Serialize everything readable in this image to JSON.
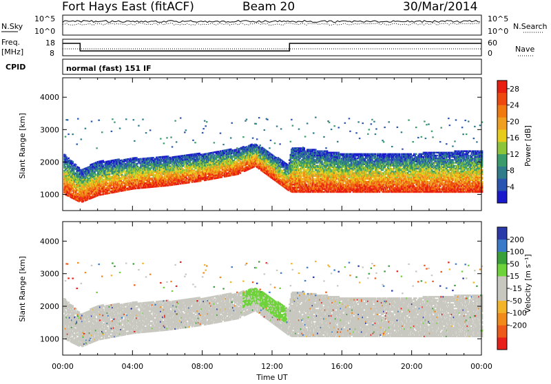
{
  "header": {
    "title": "Fort Hays East (fitACF)",
    "beam": "Beam 20",
    "date": "30/Mar/2014"
  },
  "top_panels": {
    "nsky_label": "N.Sky",
    "noise_ticks_left": [
      "10^5",
      "10^0"
    ],
    "noise_ticks_right": [
      "10^5",
      "10^0"
    ],
    "nsearch_label": "N.Search",
    "freq_label": "Freq.",
    "freq_unit": "[MHz]",
    "freq_ticks": [
      "18",
      "8"
    ],
    "nave_ticks": [
      "60",
      "0"
    ],
    "nave_label": "Nave",
    "cpid_label": "CPID",
    "cpid_text": "normal (fast) 151 IF"
  },
  "colors": {
    "power_scale": [
      "#1a1acc",
      "#2a55b0",
      "#2f7c8a",
      "#3a9c6a",
      "#8cc43a",
      "#e8cc1c",
      "#f0a020",
      "#f07a10",
      "#ee4a10",
      "#e81e10"
    ],
    "velocity_scale": [
      "#e8201a",
      "#ee5a1a",
      "#f08a1a",
      "#f2b42a",
      "#c8c8c0",
      "#c8c8c0",
      "#6ed23a",
      "#3aa03a",
      "#3a7ac8",
      "#2a3aa8"
    ],
    "ground_scatter": "#c8c8c0"
  },
  "chart_data": [
    {
      "type": "heatmap",
      "name": "Power",
      "xlabel": "",
      "ylabel": "Slant Range [km]",
      "x_ticks": [
        "00:00",
        "04:00",
        "08:00",
        "12:00",
        "16:00",
        "20:00",
        "00:00"
      ],
      "y_ticks": [
        1000,
        2000,
        3000,
        4000
      ],
      "ylim": [
        500,
        4600
      ],
      "xlim_hours": [
        0,
        24
      ],
      "colorbar_label": "Power [dB]",
      "colorbar_ticks": [
        4,
        8,
        12,
        16,
        20,
        24,
        28
      ],
      "colorbar_range": [
        0,
        30
      ],
      "echo_bands": [
        {
          "hours": [
            0,
            1,
            2,
            4,
            6,
            8,
            10,
            11,
            12.9,
            13.1,
            16,
            20,
            24
          ],
          "lower_km": [
            1050,
            780,
            1000,
            1200,
            1300,
            1450,
            1650,
            1900,
            1150,
            1100,
            1100,
            1100,
            1100
          ],
          "upper_km": [
            2300,
            1800,
            2050,
            2150,
            2200,
            2300,
            2450,
            2600,
            1950,
            2500,
            2300,
            2300,
            2400
          ]
        }
      ]
    },
    {
      "type": "heatmap",
      "name": "Velocity",
      "xlabel": "Time UT",
      "ylabel": "Slant Range [km]",
      "x_ticks": [
        "00:00",
        "04:00",
        "08:00",
        "12:00",
        "16:00",
        "20:00",
        "00:00"
      ],
      "y_ticks": [
        1000,
        2000,
        3000,
        4000
      ],
      "ylim": [
        500,
        4600
      ],
      "xlim_hours": [
        0,
        24
      ],
      "colorbar_label": "Velocity [m s⁻¹]",
      "colorbar_ticks": [
        200,
        100,
        50,
        15,
        -15,
        -50,
        -100,
        -200
      ]
    }
  ]
}
